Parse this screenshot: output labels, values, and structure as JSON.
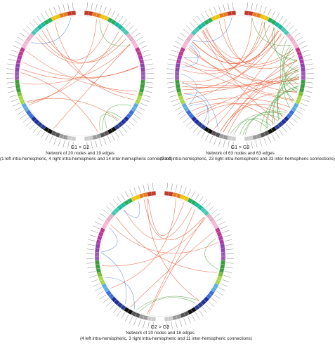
{
  "panels": [
    {
      "id": "g1-g2",
      "title": "G1 > G2",
      "line1": "Network of 20 nodes and 19 edges",
      "line2": "(1 left intra-hemispheric, 4 right intra-hemispheric and 14 inter-hemispheric connections)",
      "nodes": 20,
      "edges": 19,
      "left_intra": 1,
      "right_intra": 4,
      "inter": 14
    },
    {
      "id": "g1-g3",
      "title": "G1 > G3",
      "line1": "Network of 63 nodes and 63 edges",
      "line2": "(7 left intra-hemispheric, 23 right intra-hemispheric and 33 inter-hemispheric connections)",
      "nodes": 63,
      "edges": 63,
      "left_intra": 7,
      "right_intra": 23,
      "inter": 33
    },
    {
      "id": "g2-g3",
      "title": "G2 > G3",
      "line1": "Network of 20 nodes and 18 edges",
      "line2": "(4 left intra-hemispheric, 3 right intra-hemispheric and 11 inter-hemispheric connections)",
      "nodes": 20,
      "edges": 18,
      "left_intra": 4,
      "right_intra": 3,
      "inter": 11
    }
  ],
  "colors": {
    "inter_edge": "#e8603c",
    "right_intra_edge": "#5aa64a",
    "left_intra_edge": "#5b8fd6",
    "ring_palette": [
      "#c0392b",
      "#e67e22",
      "#f1c40f",
      "#27ae60",
      "#1abc9c",
      "#48c9b0",
      "#e6b0c8",
      "#f5b7d2",
      "#c0398b",
      "#b03aa8",
      "#8e44ad",
      "#9b59b6",
      "#3c9d3c",
      "#7dbf3a",
      "#a7d84a",
      "#5dade2",
      "#3f6fd8",
      "#1f2f9e",
      "#2c3e8f",
      "#111111",
      "#555555",
      "#999999",
      "#cccccc"
    ]
  }
}
